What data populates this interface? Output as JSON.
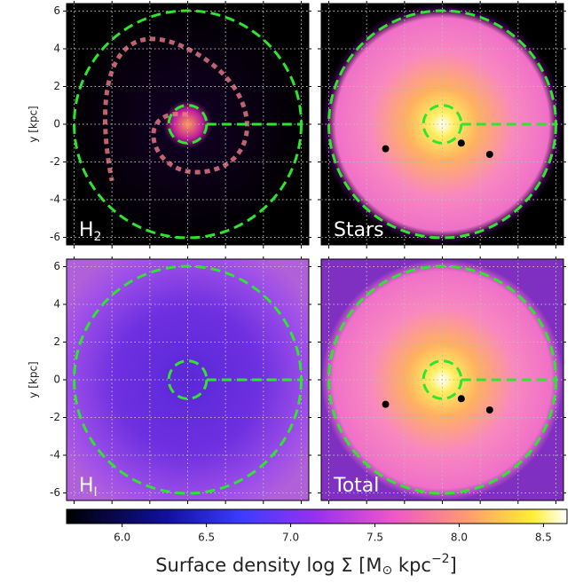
{
  "chart_data": {
    "type": "image",
    "panels": [
      {
        "label": "H",
        "subscript": "2"
      },
      {
        "label": "Stars"
      },
      {
        "label": "H",
        "subscript": "I"
      },
      {
        "label": "Total"
      }
    ],
    "ylabel": "y [kpc]",
    "xlim": [
      -6.4,
      6.4
    ],
    "ylim": [
      -6.4,
      6.4
    ],
    "xticks": [
      -6,
      -4,
      -2,
      0,
      2,
      4,
      6
    ],
    "yticks": [
      -6,
      -4,
      -2,
      0,
      2,
      4,
      6
    ],
    "grid": true,
    "circle_radii": [
      1,
      6
    ],
    "circle_color": "#2ee62e",
    "colorbar": {
      "clim": [
        5.67,
        8.64
      ],
      "ticks": [
        {
          "value": 6.0,
          "label": "6.0"
        },
        {
          "value": 6.5,
          "label": "6.5"
        },
        {
          "value": 7.0,
          "label": "7.0"
        },
        {
          "value": 7.5,
          "label": "7.5"
        },
        {
          "value": 8.0,
          "label": "8.0"
        },
        {
          "value": 8.5,
          "label": "8.5"
        }
      ],
      "label": {
        "text": "Surface density log Σ [M",
        "sub": "⊙",
        "mid": " kpc",
        "sup": "−2",
        "end": "]"
      }
    }
  }
}
